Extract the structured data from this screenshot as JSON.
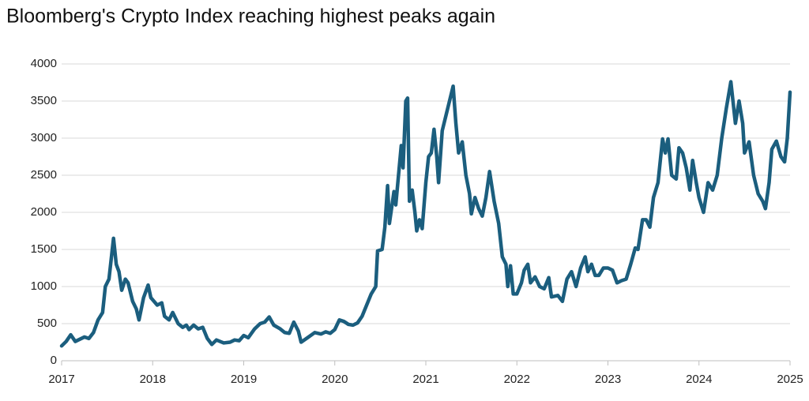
{
  "chart_data": {
    "type": "line",
    "title": "Bloomberg's Crypto Index reaching highest peaks again",
    "x": [
      2017.0,
      2017.05,
      2017.1,
      2017.15,
      2017.25,
      2017.3,
      2017.35,
      2017.4,
      2017.45,
      2017.48,
      2017.52,
      2017.57,
      2017.6,
      2017.63,
      2017.66,
      2017.7,
      2017.73,
      2017.78,
      2017.82,
      2017.85,
      2017.9,
      2017.95,
      2017.98,
      2018.05,
      2018.1,
      2018.13,
      2018.18,
      2018.22,
      2018.28,
      2018.33,
      2018.37,
      2018.4,
      2018.45,
      2018.5,
      2018.55,
      2018.6,
      2018.65,
      2018.7,
      2018.78,
      2018.85,
      2018.9,
      2018.95,
      2019.0,
      2019.05,
      2019.12,
      2019.18,
      2019.23,
      2019.28,
      2019.33,
      2019.4,
      2019.45,
      2019.5,
      2019.55,
      2019.6,
      2019.63,
      2019.7,
      2019.78,
      2019.85,
      2019.9,
      2019.95,
      2020.0,
      2020.05,
      2020.1,
      2020.15,
      2020.2,
      2020.25,
      2020.3,
      2020.35,
      2020.4,
      2020.45,
      2020.47,
      2020.52,
      2020.55,
      2020.58,
      2020.6,
      2020.65,
      2020.67,
      2020.7,
      2020.73,
      2020.75,
      2020.78,
      2020.8,
      2020.82,
      2020.85,
      2020.88,
      2020.9,
      2020.93,
      2020.96,
      2021.0,
      2021.03,
      2021.06,
      2021.09,
      2021.12,
      2021.14,
      2021.18,
      2021.22,
      2021.26,
      2021.3,
      2021.33,
      2021.36,
      2021.4,
      2021.44,
      2021.48,
      2021.5,
      2021.54,
      2021.58,
      2021.62,
      2021.66,
      2021.7,
      2021.75,
      2021.8,
      2021.84,
      2021.88,
      2021.9,
      2021.93,
      2021.96,
      2022.0,
      2022.05,
      2022.08,
      2022.12,
      2022.15,
      2022.2,
      2022.25,
      2022.3,
      2022.35,
      2022.38,
      2022.45,
      2022.5,
      2022.55,
      2022.6,
      2022.65,
      2022.7,
      2022.75,
      2022.78,
      2022.82,
      2022.86,
      2022.9,
      2022.95,
      2023.0,
      2023.05,
      2023.1,
      2023.15,
      2023.2,
      2023.25,
      2023.3,
      2023.33,
      2023.38,
      2023.42,
      2023.46,
      2023.5,
      2023.55,
      2023.6,
      2023.63,
      2023.66,
      2023.7,
      2023.75,
      2023.78,
      2023.82,
      2023.86,
      2023.9,
      2023.93,
      2023.97,
      2024.0,
      2024.05,
      2024.1,
      2024.15,
      2024.2,
      2024.25,
      2024.3,
      2024.35,
      2024.4,
      2024.44,
      2024.48,
      2024.5,
      2024.55,
      2024.6,
      2024.65,
      2024.7,
      2024.73,
      2024.77,
      2024.8,
      2024.85,
      2024.9,
      2024.94,
      2024.97,
      2025.0
    ],
    "values": [
      200,
      260,
      350,
      260,
      320,
      300,
      380,
      550,
      650,
      1000,
      1100,
      1650,
      1300,
      1200,
      950,
      1100,
      1050,
      800,
      700,
      550,
      850,
      1020,
      850,
      750,
      780,
      600,
      550,
      650,
      500,
      450,
      480,
      420,
      480,
      430,
      450,
      300,
      220,
      280,
      240,
      250,
      280,
      270,
      340,
      310,
      430,
      500,
      520,
      590,
      480,
      430,
      380,
      370,
      520,
      400,
      250,
      310,
      380,
      360,
      390,
      370,
      420,
      550,
      530,
      490,
      480,
      510,
      600,
      750,
      900,
      1000,
      1480,
      1500,
      1800,
      2360,
      1850,
      2280,
      2100,
      2500,
      2900,
      2600,
      3500,
      3540,
      2150,
      2300,
      2000,
      1750,
      1900,
      1780,
      2400,
      2750,
      2800,
      3120,
      2750,
      2400,
      3100,
      3300,
      3500,
      3700,
      3200,
      2800,
      2950,
      2500,
      2250,
      1980,
      2200,
      2050,
      1950,
      2200,
      2550,
      2150,
      1850,
      1400,
      1300,
      1000,
      1280,
      900,
      900,
      1050,
      1220,
      1300,
      1050,
      1130,
      1000,
      970,
      1120,
      860,
      880,
      800,
      1100,
      1200,
      1000,
      1250,
      1400,
      1200,
      1300,
      1150,
      1150,
      1250,
      1250,
      1220,
      1050,
      1080,
      1100,
      1300,
      1520,
      1500,
      1900,
      1900,
      1800,
      2200,
      2400,
      2990,
      2800,
      2990,
      2500,
      2450,
      2870,
      2800,
      2600,
      2300,
      2700,
      2400,
      2200,
      2000,
      2400,
      2300,
      2500,
      3000,
      3400,
      3760,
      3200,
      3500,
      3200,
      2800,
      2950,
      2500,
      2250,
      2150,
      2050,
      2400,
      2850,
      2960,
      2750,
      2680,
      3000,
      3620
    ],
    "color": "#1b5e7e",
    "xlim": [
      2017,
      2025
    ],
    "xticks": [
      2017,
      2018,
      2019,
      2020,
      2021,
      2022,
      2023,
      2024,
      2025
    ],
    "ylim": [
      0,
      4000
    ],
    "yticks": [
      0,
      500,
      1000,
      1500,
      2000,
      2500,
      3000,
      3500,
      4000
    ],
    "grid": true
  }
}
